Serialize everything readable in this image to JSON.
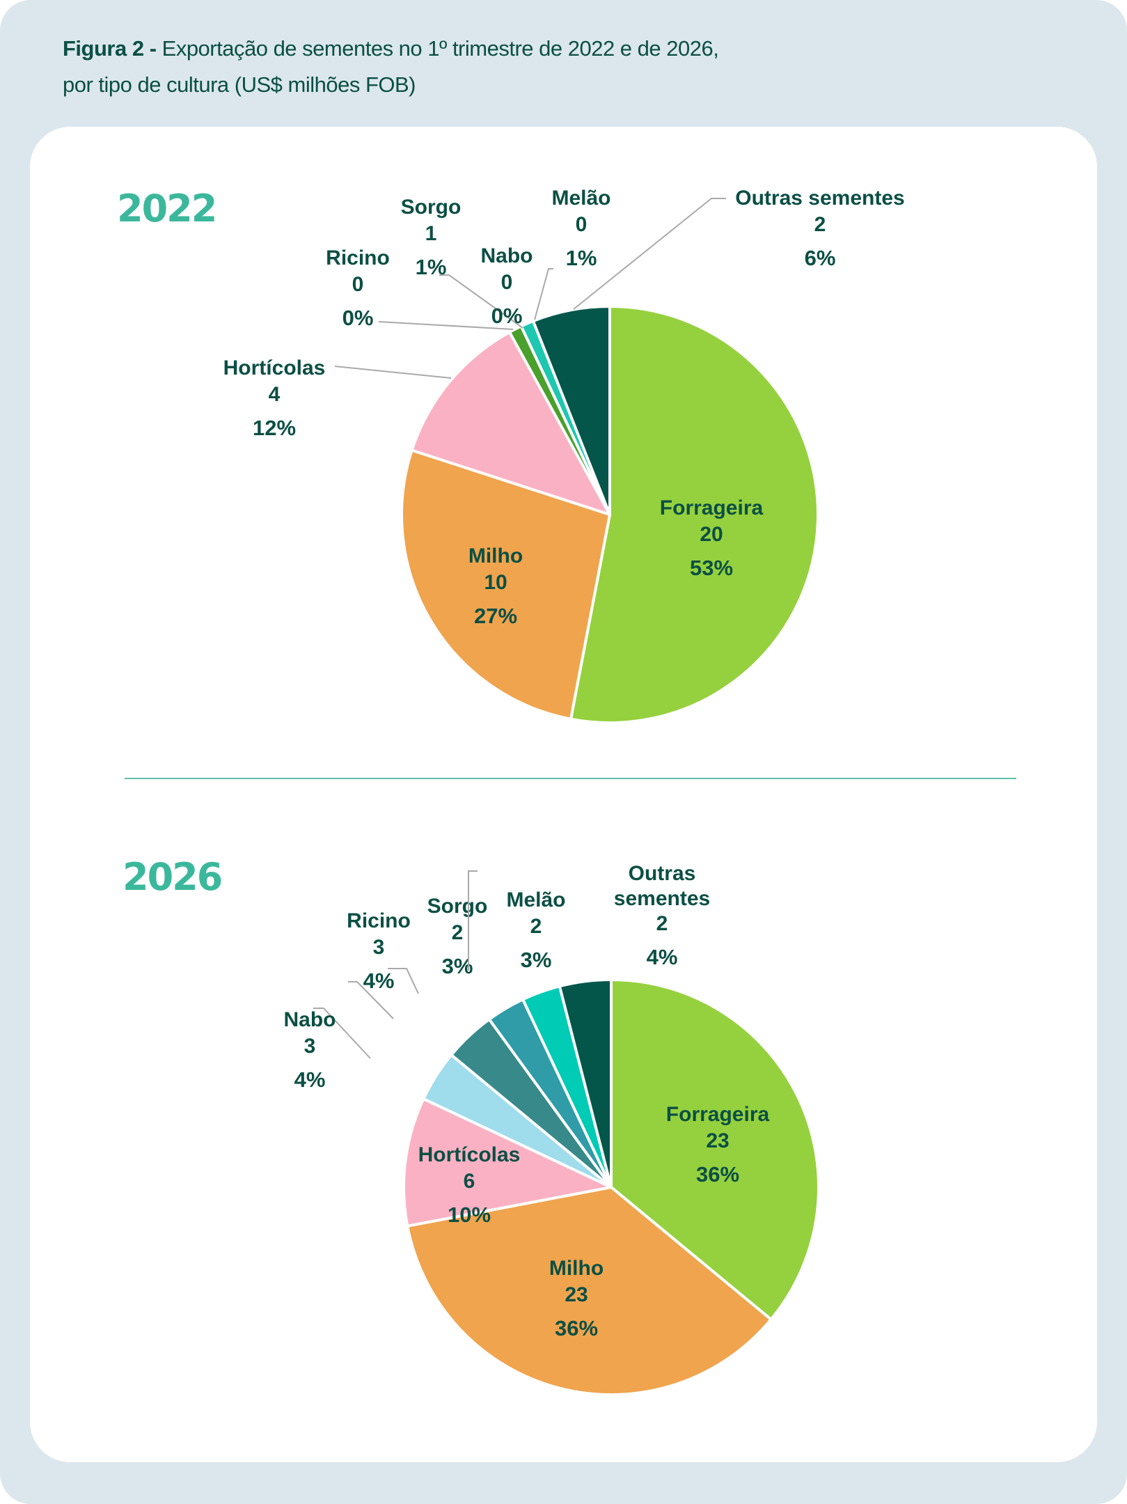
{
  "title": {
    "prefix": "Figura 2 -",
    "line1": "Exportação de sementes no 1º trimestre de 2022 e de 2026,",
    "line2": "por tipo de cultura (US$ milhões FOB)"
  },
  "chart_data": [
    {
      "type": "pie",
      "title": "2022",
      "start": "12 o'clock, clockwise",
      "slices": [
        {
          "name": "Forrageira",
          "value": "20",
          "pct": "53%",
          "color": "#95d13e"
        },
        {
          "name": "Milho",
          "value": "10",
          "pct": "27%",
          "color": "#f0a44e"
        },
        {
          "name": "Hortícolas",
          "value": "4",
          "pct": "12%",
          "color": "#fbb1c4"
        },
        {
          "name": "Ricino",
          "value": "0",
          "pct": "0%",
          "color": "#388a8a"
        },
        {
          "name": "Sorgo",
          "value": "1",
          "pct": "1%",
          "color": "#4aa02c"
        },
        {
          "name": "Nabo",
          "value": "0",
          "pct": "0%",
          "color": "#9fdcec"
        },
        {
          "name": "Melão",
          "value": "0",
          "pct": "1%",
          "color": "#1ec7b0"
        },
        {
          "name": "Outras sementes",
          "value": "2",
          "pct": "6%",
          "color": "#04564a"
        }
      ]
    },
    {
      "type": "pie",
      "title": "2026",
      "start": "12 o'clock, clockwise",
      "slices": [
        {
          "name": "Forrageira",
          "value": "23",
          "pct": "36%",
          "color": "#95d13e"
        },
        {
          "name": "Milho",
          "value": "23",
          "pct": "36%",
          "color": "#f0a44e"
        },
        {
          "name": "Hortícolas",
          "value": "6",
          "pct": "10%",
          "color": "#fbb1c4"
        },
        {
          "name": "Nabo",
          "value": "3",
          "pct": "4%",
          "color": "#9fdcec"
        },
        {
          "name": "Ricino",
          "value": "3",
          "pct": "4%",
          "color": "#388a8a"
        },
        {
          "name": "Sorgo",
          "value": "2",
          "pct": "3%",
          "color": "#2f9ca8"
        },
        {
          "name": "Melão",
          "value": "2",
          "pct": "3%",
          "color": "#00cbb5"
        },
        {
          "name": "Outras sementes",
          "value": "2",
          "pct": "4%",
          "color": "#04564a"
        }
      ]
    }
  ]
}
